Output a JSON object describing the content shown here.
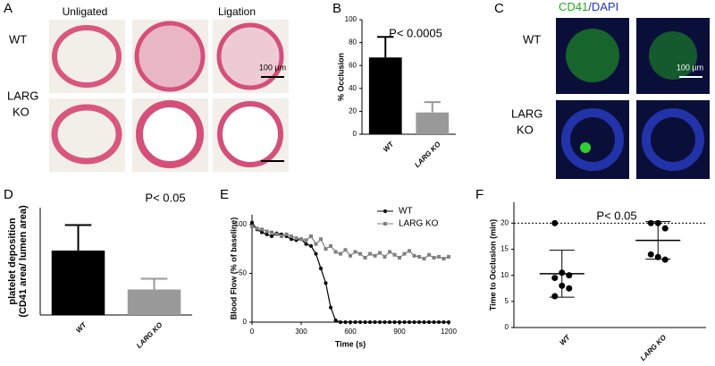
{
  "image_panels": [
    {
      "label": "A",
      "column_titles": [
        "Unligated",
        "Ligation"
      ],
      "row_titles": [
        [
          "WT"
        ],
        [
          "LARG",
          "KO"
        ]
      ],
      "scale_bar": "100 µm"
    },
    {
      "label": "C",
      "title_parts": [
        "CD41",
        "/DAPI"
      ],
      "row_titles": [
        [
          "WT"
        ],
        [
          "LARG",
          "KO"
        ]
      ],
      "scale_bar": "100 µm"
    }
  ],
  "chart_data": [
    {
      "type": "bar",
      "label": "B",
      "annotation": "P< 0.0005",
      "ylabel": [
        "% Occlusion"
      ],
      "categories": [
        "WT",
        "LARG KO"
      ],
      "values": [
        67,
        19
      ],
      "errors": [
        18,
        9
      ],
      "colors": [
        "#000000",
        "#999999"
      ],
      "ylim": [
        0,
        100
      ],
      "yticks": [
        0,
        20,
        40,
        60,
        80,
        100
      ]
    },
    {
      "type": "bar",
      "label": "D",
      "annotation": "P< 0.05",
      "ylabel": [
        "platelet deposition",
        "(CD41 area/ lumen area)"
      ],
      "categories": [
        "WT",
        "LARG KO"
      ],
      "values": [
        48,
        19
      ],
      "errors": [
        19,
        8
      ],
      "colors": [
        "#000000",
        "#999999"
      ],
      "ylim": [
        0,
        80
      ]
    },
    {
      "type": "line",
      "label": "E",
      "xlabel": "Time (s)",
      "ylabel": [
        "Blood Flow (% of baseline)"
      ],
      "legend": "top right",
      "x": [
        0,
        30,
        60,
        90,
        120,
        150,
        180,
        210,
        240,
        270,
        300,
        330,
        360,
        390,
        420,
        450,
        480,
        510,
        540,
        570,
        600,
        630,
        660,
        690,
        720,
        750,
        780,
        810,
        840,
        870,
        900,
        930,
        960,
        990,
        1020,
        1050,
        1080,
        1110,
        1140,
        1170,
        1200
      ],
      "series": [
        {
          "name": "WT",
          "color": "#000000",
          "marker": "circle",
          "values": [
            102,
            95,
            92,
            90,
            88,
            91,
            90,
            88,
            85,
            84,
            85,
            80,
            78,
            70,
            55,
            40,
            15,
            2,
            0,
            0,
            0,
            0,
            0,
            0,
            0,
            0,
            0,
            0,
            0,
            0,
            0,
            0,
            0,
            0,
            0,
            0,
            0,
            0,
            0,
            0,
            0
          ]
        },
        {
          "name": "LARG KO",
          "color": "#808080",
          "marker": "square",
          "values": [
            98,
            96,
            95,
            93,
            92,
            90,
            88,
            90,
            88,
            86,
            85,
            84,
            88,
            80,
            85,
            75,
            78,
            72,
            70,
            74,
            68,
            72,
            70,
            66,
            70,
            68,
            71,
            67,
            72,
            69,
            66,
            70,
            73,
            68,
            67,
            65,
            69,
            66,
            67,
            65,
            67
          ]
        }
      ],
      "xlim": [
        0,
        1200
      ],
      "xticks": [
        0,
        300,
        600,
        900,
        1200
      ],
      "ylim": [
        0,
        110
      ],
      "yticks": [
        0,
        50,
        100
      ]
    },
    {
      "type": "scatter",
      "label": "F",
      "annotation": "P< 0.05",
      "ylabel": [
        "Time to Occlusion (min)"
      ],
      "categories": [
        "WT",
        "LARG KO"
      ],
      "values": [
        [
          20,
          10.5,
          10,
          9.5,
          8,
          7.5,
          6
        ],
        [
          20,
          20,
          19,
          14,
          13.5,
          13
        ]
      ],
      "means": [
        10.3,
        16.7
      ],
      "sds": [
        4.5,
        3.6
      ],
      "color": "#000000",
      "ref_line": 20,
      "ylim": [
        0,
        24
      ],
      "yticks": [
        0,
        5,
        10,
        15,
        20
      ]
    }
  ]
}
